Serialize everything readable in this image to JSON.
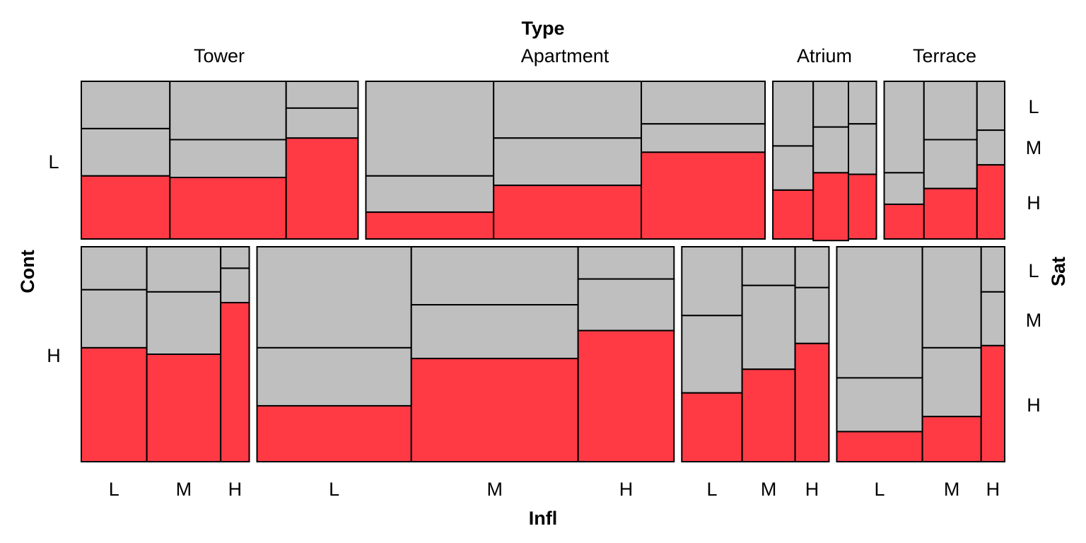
{
  "chart_data": {
    "type": "mosaic",
    "title": "",
    "variables": [
      "Type",
      "Infl",
      "Cont",
      "Sat"
    ],
    "top_variable_label": "Type",
    "x_axis_label": "Infl",
    "left_axis_label": "Cont",
    "right_axis_label": "Sat",
    "type_categories": [
      "Tower",
      "Apartment",
      "Atrium",
      "Terrace"
    ],
    "infl_categories": [
      "L",
      "M",
      "H"
    ],
    "cont_categories": [
      "L",
      "H"
    ],
    "sat_categories": [
      "L",
      "M",
      "H"
    ],
    "highlighted_level": "H",
    "colors": {
      "highlight": "#ff3a45",
      "other": "#bfbfbf",
      "border": "#000000"
    },
    "blocks": [
      {
        "type": "Tower",
        "cont": "L",
        "type_width": 0.147,
        "infl_widths": [
          0.32,
          0.42,
          0.26
        ],
        "sat_shares": [
          [
            0.3,
            0.3,
            0.4
          ],
          [
            0.37,
            0.24,
            0.39
          ],
          [
            0.17,
            0.19,
            0.64
          ]
        ]
      },
      {
        "type": "Apartment",
        "cont": "L",
        "type_width": 0.212,
        "infl_widths": [
          0.32,
          0.37,
          0.31
        ],
        "sat_shares": [
          [
            0.6,
            0.23,
            0.17
          ],
          [
            0.36,
            0.3,
            0.34
          ],
          [
            0.27,
            0.18,
            0.55
          ]
        ]
      },
      {
        "type": "Atrium",
        "cont": "L",
        "type_width": 0.055,
        "infl_widths": [
          0.39,
          0.34,
          0.27
        ],
        "sat_shares": [
          [
            0.41,
            0.28,
            0.31
          ],
          [
            0.29,
            0.29,
            0.43
          ],
          [
            0.27,
            0.32,
            0.41
          ]
        ]
      },
      {
        "type": "Terrace",
        "cont": "L",
        "type_width": 0.064,
        "infl_widths": [
          0.33,
          0.44,
          0.23
        ],
        "sat_shares": [
          [
            0.58,
            0.2,
            0.22
          ],
          [
            0.37,
            0.31,
            0.32
          ],
          [
            0.31,
            0.22,
            0.47
          ]
        ]
      },
      {
        "type": "Tower",
        "cont": "H",
        "type_width": 0.089,
        "infl_widths": [
          0.39,
          0.44,
          0.17
        ],
        "sat_shares": [
          [
            0.2,
            0.27,
            0.53
          ],
          [
            0.21,
            0.29,
            0.5
          ],
          [
            0.1,
            0.16,
            0.74
          ]
        ]
      },
      {
        "type": "Apartment",
        "cont": "H",
        "type_width": 0.221,
        "infl_widths": [
          0.37,
          0.4,
          0.23
        ],
        "sat_shares": [
          [
            0.47,
            0.27,
            0.26
          ],
          [
            0.27,
            0.25,
            0.48
          ],
          [
            0.15,
            0.24,
            0.61
          ]
        ]
      },
      {
        "type": "Atrium",
        "cont": "H",
        "type_width": 0.078,
        "infl_widths": [
          0.41,
          0.36,
          0.23
        ],
        "sat_shares": [
          [
            0.32,
            0.36,
            0.32
          ],
          [
            0.18,
            0.39,
            0.43
          ],
          [
            0.19,
            0.26,
            0.55
          ]
        ]
      },
      {
        "type": "Terrace",
        "cont": "H",
        "type_width": 0.089,
        "infl_widths": [
          0.51,
          0.35,
          0.14
        ],
        "sat_shares": [
          [
            0.61,
            0.25,
            0.14
          ],
          [
            0.47,
            0.32,
            0.21
          ],
          [
            0.21,
            0.25,
            0.54
          ]
        ]
      }
    ]
  }
}
